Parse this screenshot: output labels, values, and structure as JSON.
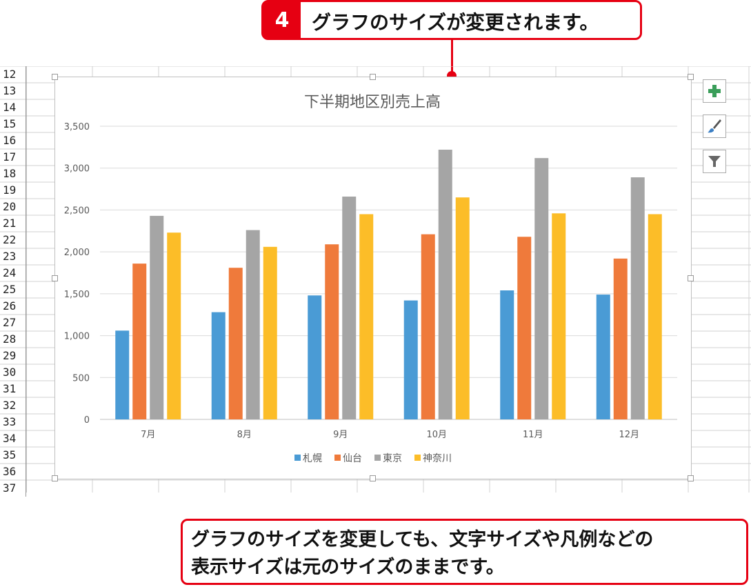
{
  "step": {
    "number": "4",
    "text": "グラフのサイズが変更されます。"
  },
  "rows": [
    "12",
    "13",
    "14",
    "15",
    "16",
    "17",
    "18",
    "19",
    "20",
    "21",
    "22",
    "23",
    "24",
    "25",
    "26",
    "27",
    "28",
    "29",
    "30",
    "31",
    "32",
    "33",
    "34",
    "35",
    "36",
    "37"
  ],
  "side_buttons": [
    {
      "name": "chart-elements",
      "icon": "plus-icon"
    },
    {
      "name": "chart-styles",
      "icon": "paintbrush-icon"
    },
    {
      "name": "chart-filters",
      "icon": "filter-icon"
    }
  ],
  "colors": {
    "accent": "#e60012",
    "series": [
      "#4a9bd5",
      "#ef7a3b",
      "#a5a5a5",
      "#fcbd28"
    ]
  },
  "chart_data": {
    "type": "bar",
    "title": "下半期地区別売上高",
    "categories": [
      "7月",
      "8月",
      "9月",
      "10月",
      "11月",
      "12月"
    ],
    "series": [
      {
        "name": "札幌",
        "values": [
          1060,
          1280,
          1480,
          1420,
          1540,
          1490
        ]
      },
      {
        "name": "仙台",
        "values": [
          1860,
          1810,
          2090,
          2210,
          2180,
          1920
        ]
      },
      {
        "name": "東京",
        "values": [
          2430,
          2260,
          2660,
          3220,
          3120,
          2890
        ]
      },
      {
        "name": "神奈川",
        "values": [
          2230,
          2060,
          2450,
          2650,
          2460,
          2450
        ]
      }
    ],
    "yticks": [
      "0",
      "500",
      "1,000",
      "1,500",
      "2,000",
      "2,500",
      "3,000",
      "3,500"
    ],
    "ylim": [
      0,
      3500
    ],
    "grid": true,
    "legend": "bottom"
  },
  "note": {
    "line1": "グラフのサイズを変更しても、文字サイズや凡例などの",
    "line2": "表示サイズは元のサイズのままです。"
  }
}
